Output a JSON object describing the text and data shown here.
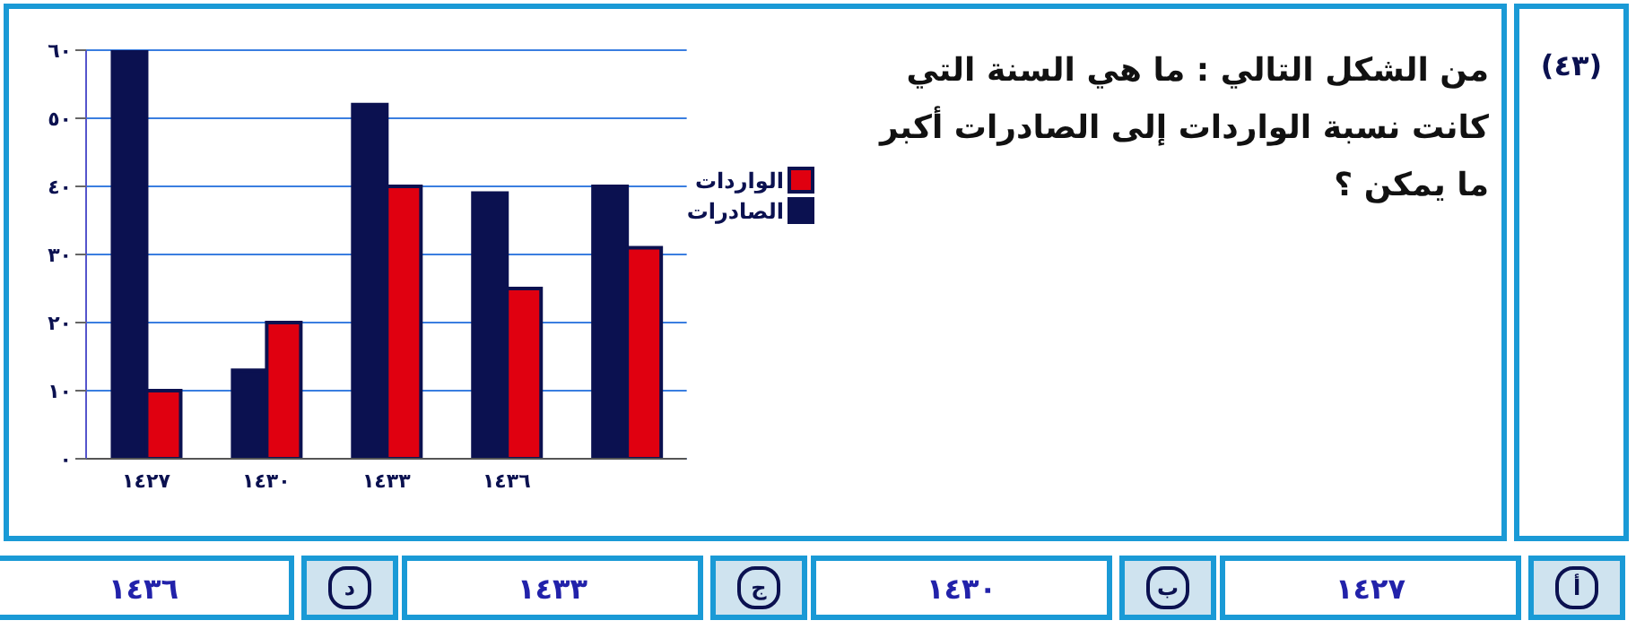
{
  "chart_data": {
    "type": "bar",
    "title": "من الشكل التالي : ما هي السنة التي كانت نسبة الواردات إلى الصادرات أكبر ما يمكن ؟",
    "categories": [
      "١٤٢٧",
      "١٤٣٠",
      "١٤٣٣",
      "١٤٣٦",
      null
    ],
    "series": [
      {
        "name": "الصادرات",
        "color": "#0b1150",
        "values": [
          60,
          13,
          52,
          39,
          40
        ]
      },
      {
        "name": "الواردات",
        "color": "#e00010",
        "values": [
          10,
          20,
          40,
          25,
          31
        ]
      }
    ],
    "ylim": [
      0,
      60
    ],
    "yticks": [
      {
        "value": 0,
        "label": "٠"
      },
      {
        "value": 10,
        "label": "١٠"
      },
      {
        "value": 20,
        "label": "٢٠"
      },
      {
        "value": 30,
        "label": "٣٠"
      },
      {
        "value": 40,
        "label": "٤٠"
      },
      {
        "value": 50,
        "label": "٥٠"
      },
      {
        "value": 60,
        "label": "٦٠"
      }
    ],
    "grid": "y",
    "legend": "right",
    "annotations": [
      "(٤٣)",
      "أ",
      "١٤٢٧",
      "ب",
      "١٤٣٠",
      "ج",
      "١٤٣٣",
      "د",
      "١٤٣٦"
    ]
  }
}
